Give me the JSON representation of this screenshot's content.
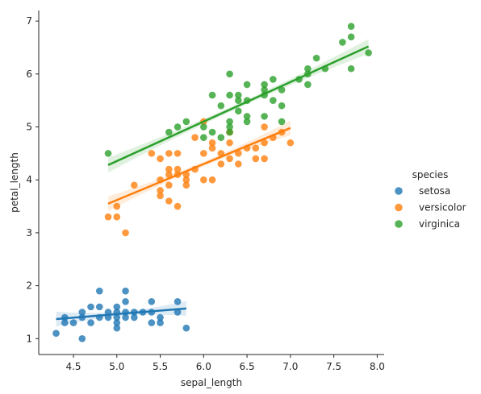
{
  "chart_data": {
    "type": "scatter",
    "xlabel": "sepal_length",
    "ylabel": "petal_length",
    "xlim": [
      4.1,
      8.08
    ],
    "ylim": [
      0.7,
      7.2
    ],
    "x_ticks": [
      "4.5",
      "5.0",
      "5.5",
      "6.0",
      "6.5",
      "7.0",
      "7.5",
      "8.0"
    ],
    "y_ticks": [
      "1",
      "2",
      "3",
      "4",
      "5",
      "6",
      "7"
    ],
    "grid": false,
    "legend": {
      "title": "species",
      "placement": "right"
    },
    "series": [
      {
        "name": "setosa",
        "color": "#1f77b4",
        "fit": [
          [
            4.3,
            1.37
          ],
          [
            5.8,
            1.57
          ]
        ],
        "points": [
          [
            4.3,
            1.1
          ],
          [
            4.4,
            1.3
          ],
          [
            4.4,
            1.4
          ],
          [
            4.5,
            1.3
          ],
          [
            4.6,
            1.0
          ],
          [
            4.6,
            1.4
          ],
          [
            4.6,
            1.5
          ],
          [
            4.7,
            1.3
          ],
          [
            4.7,
            1.6
          ],
          [
            4.8,
            1.4
          ],
          [
            4.8,
            1.6
          ],
          [
            4.8,
            1.9
          ],
          [
            4.9,
            1.4
          ],
          [
            4.9,
            1.5
          ],
          [
            5.0,
            1.2
          ],
          [
            5.0,
            1.3
          ],
          [
            5.0,
            1.4
          ],
          [
            5.0,
            1.5
          ],
          [
            5.0,
            1.6
          ],
          [
            5.1,
            1.4
          ],
          [
            5.1,
            1.5
          ],
          [
            5.1,
            1.7
          ],
          [
            5.1,
            1.9
          ],
          [
            5.2,
            1.4
          ],
          [
            5.2,
            1.5
          ],
          [
            5.3,
            1.5
          ],
          [
            5.4,
            1.3
          ],
          [
            5.4,
            1.5
          ],
          [
            5.4,
            1.7
          ],
          [
            5.5,
            1.3
          ],
          [
            5.5,
            1.4
          ],
          [
            5.7,
            1.5
          ],
          [
            5.7,
            1.7
          ],
          [
            5.8,
            1.2
          ]
        ]
      },
      {
        "name": "versicolor",
        "color": "#ff7f0e",
        "fit": [
          [
            4.9,
            3.55
          ],
          [
            7.0,
            4.98
          ]
        ],
        "points": [
          [
            4.9,
            3.3
          ],
          [
            5.0,
            3.3
          ],
          [
            5.0,
            3.5
          ],
          [
            5.1,
            3.0
          ],
          [
            5.2,
            3.9
          ],
          [
            5.4,
            4.5
          ],
          [
            5.5,
            3.7
          ],
          [
            5.5,
            3.8
          ],
          [
            5.5,
            4.0
          ],
          [
            5.5,
            4.4
          ],
          [
            5.6,
            3.6
          ],
          [
            5.6,
            3.9
          ],
          [
            5.6,
            4.1
          ],
          [
            5.6,
            4.2
          ],
          [
            5.6,
            4.5
          ],
          [
            5.7,
            3.5
          ],
          [
            5.7,
            4.1
          ],
          [
            5.7,
            4.2
          ],
          [
            5.7,
            4.5
          ],
          [
            5.8,
            3.9
          ],
          [
            5.8,
            4.0
          ],
          [
            5.8,
            4.1
          ],
          [
            5.9,
            4.2
          ],
          [
            5.9,
            4.8
          ],
          [
            6.0,
            4.0
          ],
          [
            6.0,
            4.5
          ],
          [
            6.0,
            5.1
          ],
          [
            6.1,
            4.0
          ],
          [
            6.1,
            4.6
          ],
          [
            6.1,
            4.7
          ],
          [
            6.2,
            4.3
          ],
          [
            6.2,
            4.5
          ],
          [
            6.3,
            4.4
          ],
          [
            6.3,
            4.7
          ],
          [
            6.3,
            4.9
          ],
          [
            6.4,
            4.3
          ],
          [
            6.4,
            4.5
          ],
          [
            6.5,
            4.6
          ],
          [
            6.6,
            4.4
          ],
          [
            6.6,
            4.6
          ],
          [
            6.7,
            4.4
          ],
          [
            6.7,
            4.7
          ],
          [
            6.7,
            5.0
          ],
          [
            6.8,
            4.8
          ],
          [
            6.9,
            4.9
          ],
          [
            7.0,
            4.7
          ]
        ]
      },
      {
        "name": "virginica",
        "color": "#2ca02c",
        "fit": [
          [
            4.9,
            4.28
          ],
          [
            7.9,
            6.52
          ]
        ],
        "points": [
          [
            4.9,
            4.5
          ],
          [
            5.6,
            4.9
          ],
          [
            5.7,
            5.0
          ],
          [
            5.8,
            5.1
          ],
          [
            6.0,
            4.8
          ],
          [
            6.0,
            5.0
          ],
          [
            6.1,
            4.9
          ],
          [
            6.1,
            5.6
          ],
          [
            6.2,
            4.8
          ],
          [
            6.2,
            5.4
          ],
          [
            6.3,
            4.9
          ],
          [
            6.3,
            5.0
          ],
          [
            6.3,
            5.1
          ],
          [
            6.3,
            5.6
          ],
          [
            6.3,
            6.0
          ],
          [
            6.4,
            5.3
          ],
          [
            6.4,
            5.5
          ],
          [
            6.4,
            5.6
          ],
          [
            6.5,
            5.1
          ],
          [
            6.5,
            5.2
          ],
          [
            6.5,
            5.5
          ],
          [
            6.5,
            5.8
          ],
          [
            6.7,
            5.2
          ],
          [
            6.7,
            5.6
          ],
          [
            6.7,
            5.7
          ],
          [
            6.7,
            5.8
          ],
          [
            6.8,
            5.5
          ],
          [
            6.8,
            5.9
          ],
          [
            6.9,
            5.1
          ],
          [
            6.9,
            5.4
          ],
          [
            6.9,
            5.7
          ],
          [
            7.1,
            5.9
          ],
          [
            7.2,
            5.8
          ],
          [
            7.2,
            6.0
          ],
          [
            7.2,
            6.1
          ],
          [
            7.3,
            6.3
          ],
          [
            7.4,
            6.1
          ],
          [
            7.6,
            6.6
          ],
          [
            7.7,
            6.1
          ],
          [
            7.7,
            6.7
          ],
          [
            7.7,
            6.9
          ],
          [
            7.9,
            6.4
          ]
        ]
      }
    ]
  }
}
